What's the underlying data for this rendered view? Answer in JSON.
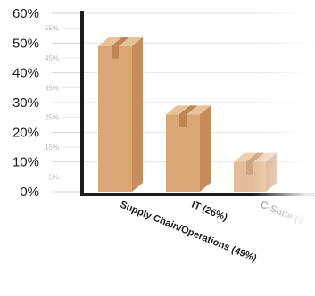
{
  "chart_data": {
    "type": "bar",
    "categories": [
      "Supply Chain/Operations (49%)",
      "IT (26%)",
      "C-Suite (1"
    ],
    "values": [
      49,
      26,
      10
    ],
    "ylim": [
      0,
      60
    ],
    "yticks_major": [
      "0%",
      "10%",
      "20%",
      "30%",
      "40%",
      "50%",
      "60%"
    ],
    "yticks_minor": [
      "5%",
      "15%",
      "25%",
      "35%",
      "45%",
      "55%"
    ],
    "grid": true,
    "colors": {
      "box_front": "#dba675",
      "box_side": "#c68d5c",
      "box_top": "#e8c196",
      "tape": "#bb8653",
      "axis": "#1b1b1b",
      "grid": "#e2e2e2"
    }
  }
}
